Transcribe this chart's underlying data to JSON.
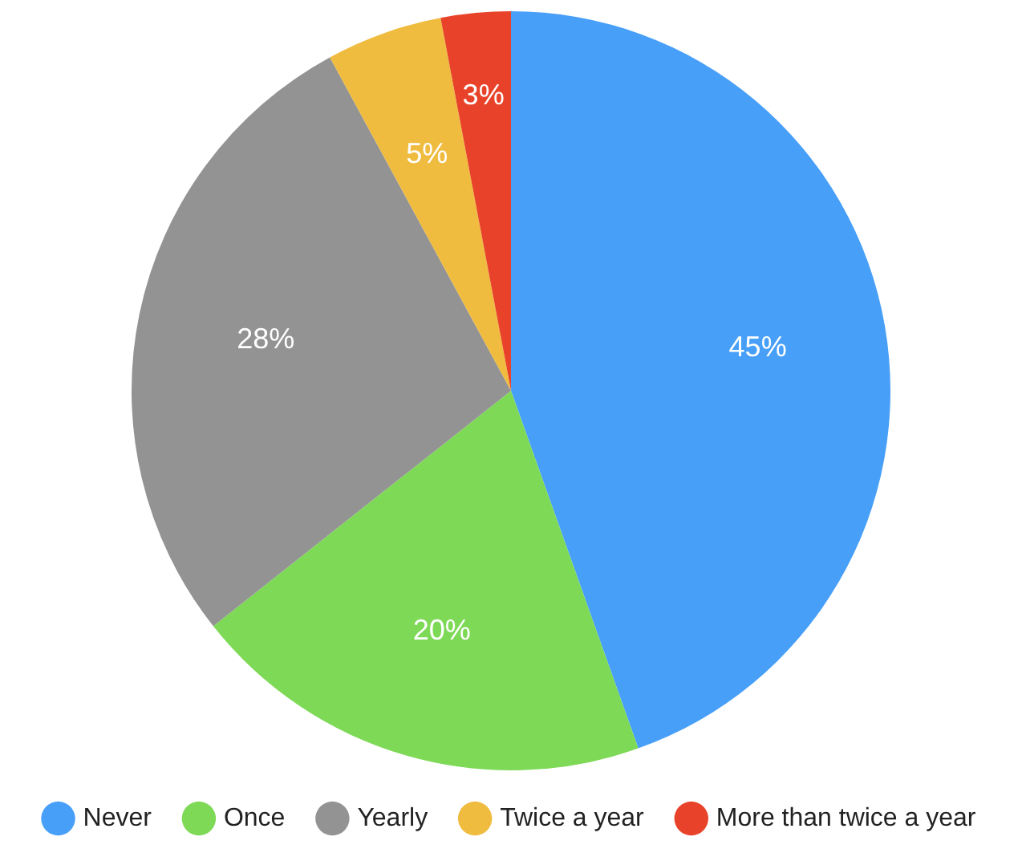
{
  "chart_data": {
    "type": "pie",
    "categories": [
      "Never",
      "Once",
      "Yearly",
      "Twice a year",
      "More than twice a year"
    ],
    "values": [
      45,
      20,
      28,
      5,
      3
    ],
    "colors": [
      "#479ff8",
      "#7ed957",
      "#939393",
      "#efbc40",
      "#e8432a"
    ],
    "value_labels": [
      "45%",
      "20%",
      "28%",
      "5%",
      "3%"
    ],
    "legend": "bottom"
  }
}
